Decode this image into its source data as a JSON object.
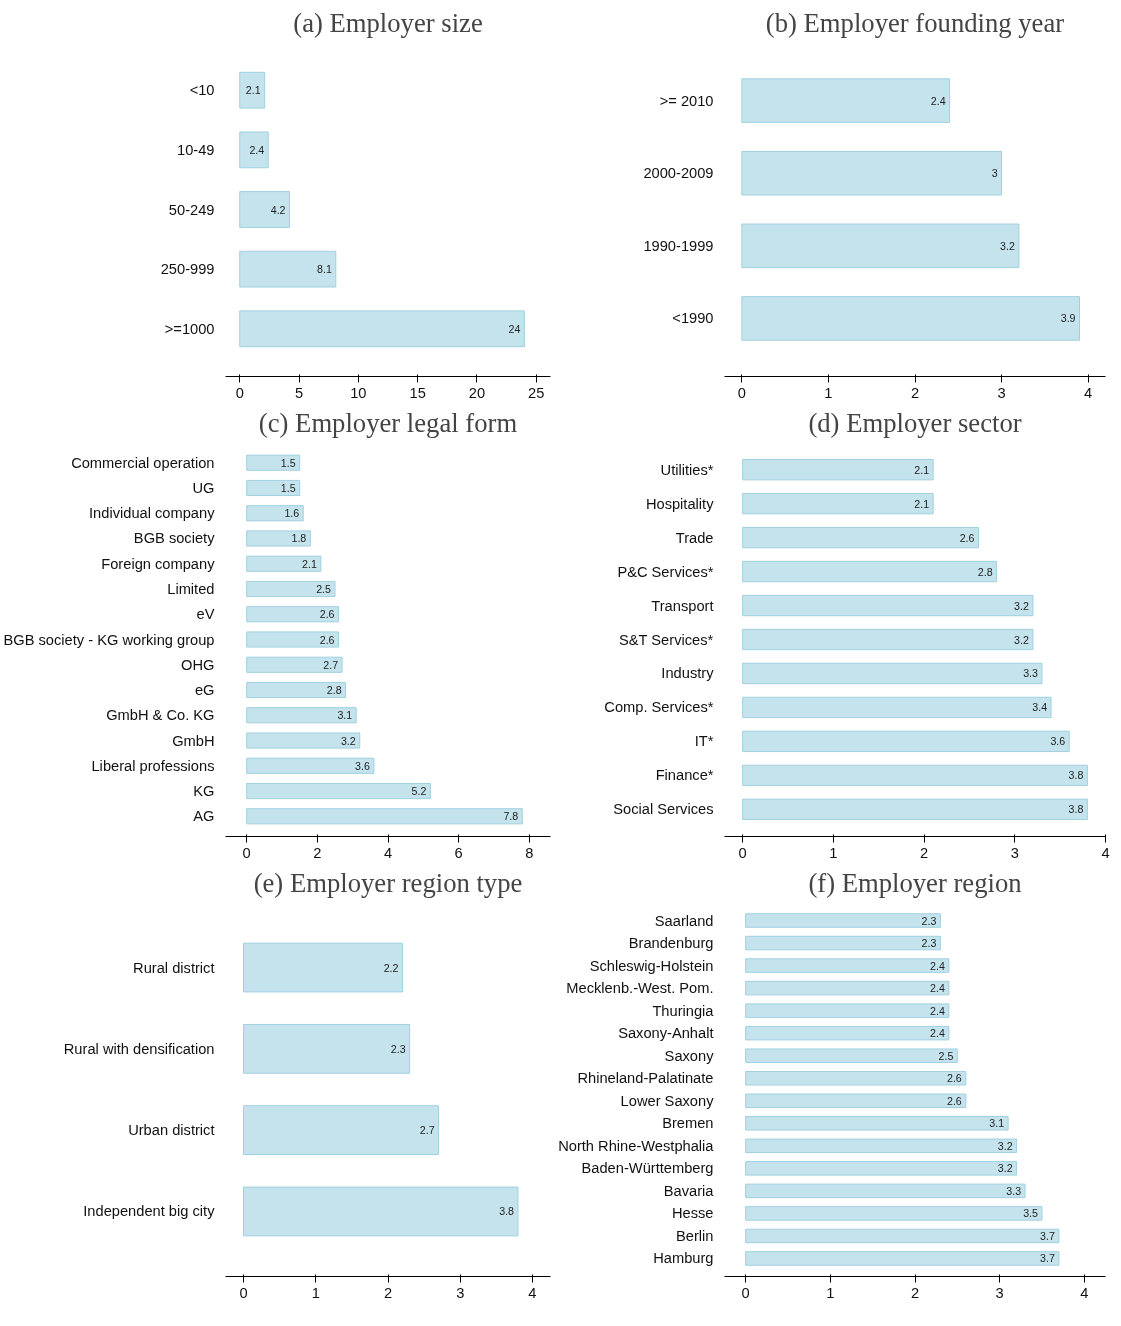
{
  "chart_data": [
    {
      "type": "bar",
      "orientation": "horizontal",
      "title": "(a) Employer size",
      "categories": [
        "<10",
        "10-49",
        "50-249",
        "250-999",
        ">=1000"
      ],
      "values": [
        2.1,
        2.4,
        4.2,
        8.1,
        24
      ],
      "color": "#c5e3ed",
      "xlim": [
        -1.2,
        26.2
      ],
      "xticks": [
        0,
        5,
        10,
        15,
        20,
        25
      ],
      "data_labels": true,
      "grid": false
    },
    {
      "type": "bar",
      "orientation": "horizontal",
      "title": "(b) Employer founding year",
      "categories": [
        ">= 2010",
        "2000-2009",
        "1990-1999",
        "<1990"
      ],
      "values": [
        2.4,
        3,
        3.2,
        3.9
      ],
      "color": "#c5e3ed",
      "xlim": [
        -0.2,
        4.2
      ],
      "xticks": [
        0,
        1,
        2,
        3,
        4
      ],
      "data_labels": true,
      "grid": false
    },
    {
      "type": "bar",
      "orientation": "horizontal",
      "title": "(c) Employer legal form",
      "categories": [
        "Commercial operation",
        "UG",
        "Individual company",
        "BGB society",
        "Foreign company",
        "Limited",
        "eV",
        "BGB society - KG working group",
        "OHG",
        "eG",
        "GmbH & Co. KG",
        "GmbH",
        "Liberal professions",
        "KG",
        "AG"
      ],
      "values": [
        1.5,
        1.5,
        1.6,
        1.8,
        2.1,
        2.5,
        2.6,
        2.6,
        2.7,
        2.8,
        3.1,
        3.2,
        3.6,
        5.2,
        7.8
      ],
      "color": "#c5e3ed",
      "xlim": [
        -0.6,
        8.6
      ],
      "xticks": [
        0,
        2,
        4,
        6,
        8
      ],
      "data_labels": true,
      "grid": false
    },
    {
      "type": "bar",
      "orientation": "horizontal",
      "title": "(d) Employer sector",
      "categories": [
        "Utilities*",
        "Hospitality",
        "Trade",
        "P&C Services*",
        "Transport",
        "S&T Services*",
        "Industry",
        "Comp. Services*",
        "IT*",
        "Finance*",
        "Social Services"
      ],
      "values": [
        2.1,
        2.1,
        2.6,
        2.8,
        3.2,
        3.2,
        3.3,
        3.4,
        3.6,
        3.8,
        3.8
      ],
      "color": "#c5e3ed",
      "xlim": [
        -0.2,
        4.0
      ],
      "xticks": [
        0,
        1,
        2,
        3,
        4
      ],
      "data_labels": true,
      "grid": false
    },
    {
      "type": "bar",
      "orientation": "horizontal",
      "title": "(e) Employer region type",
      "categories": [
        "Rural district",
        "Rural with densification",
        "Urban district",
        "Independent big city"
      ],
      "values": [
        2.2,
        2.3,
        2.7,
        3.8
      ],
      "color": "#c5e3ed",
      "xlim": [
        -0.25,
        4.25
      ],
      "xticks": [
        0,
        1,
        2,
        3,
        4
      ],
      "data_labels": true,
      "grid": false
    },
    {
      "type": "bar",
      "orientation": "horizontal",
      "title": "(f) Employer region",
      "categories": [
        "Saarland",
        "Brandenburg",
        "Schleswig-Holstein",
        "Mecklenb.-West. Pom.",
        "Thuringia",
        "Saxony-Anhalt",
        "Saxony",
        "Rhineland-Palatinate",
        "Lower Saxony",
        "Bremen",
        "North Rhine-Westphalia",
        "Baden-Württemberg",
        "Bavaria",
        "Hesse",
        "Berlin",
        "Hamburg"
      ],
      "values": [
        2.3,
        2.3,
        2.4,
        2.4,
        2.4,
        2.4,
        2.5,
        2.6,
        2.6,
        3.1,
        3.2,
        3.2,
        3.3,
        3.5,
        3.7,
        3.7
      ],
      "color": "#c5e3ed",
      "xlim": [
        -0.25,
        4.25
      ],
      "xticks": [
        0,
        1,
        2,
        3,
        4
      ],
      "data_labels": true,
      "grid": false
    }
  ]
}
